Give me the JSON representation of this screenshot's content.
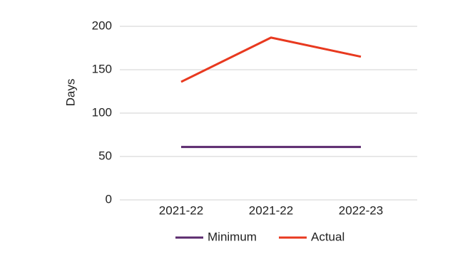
{
  "chart_data": {
    "type": "line",
    "categories": [
      "2021-22",
      "2021-22",
      "2022-23"
    ],
    "y_label": "Days",
    "series": [
      {
        "name": "Minimum",
        "color": "#5b2a6e",
        "values": [
          61,
          61,
          61
        ]
      },
      {
        "name": "Actual",
        "color": "#e8391f",
        "values": [
          136,
          187,
          165
        ]
      }
    ],
    "ylim": [
      0,
      200
    ],
    "yticks": [
      0,
      50,
      100,
      150,
      200
    ],
    "grid": true,
    "legend": "bottom"
  }
}
